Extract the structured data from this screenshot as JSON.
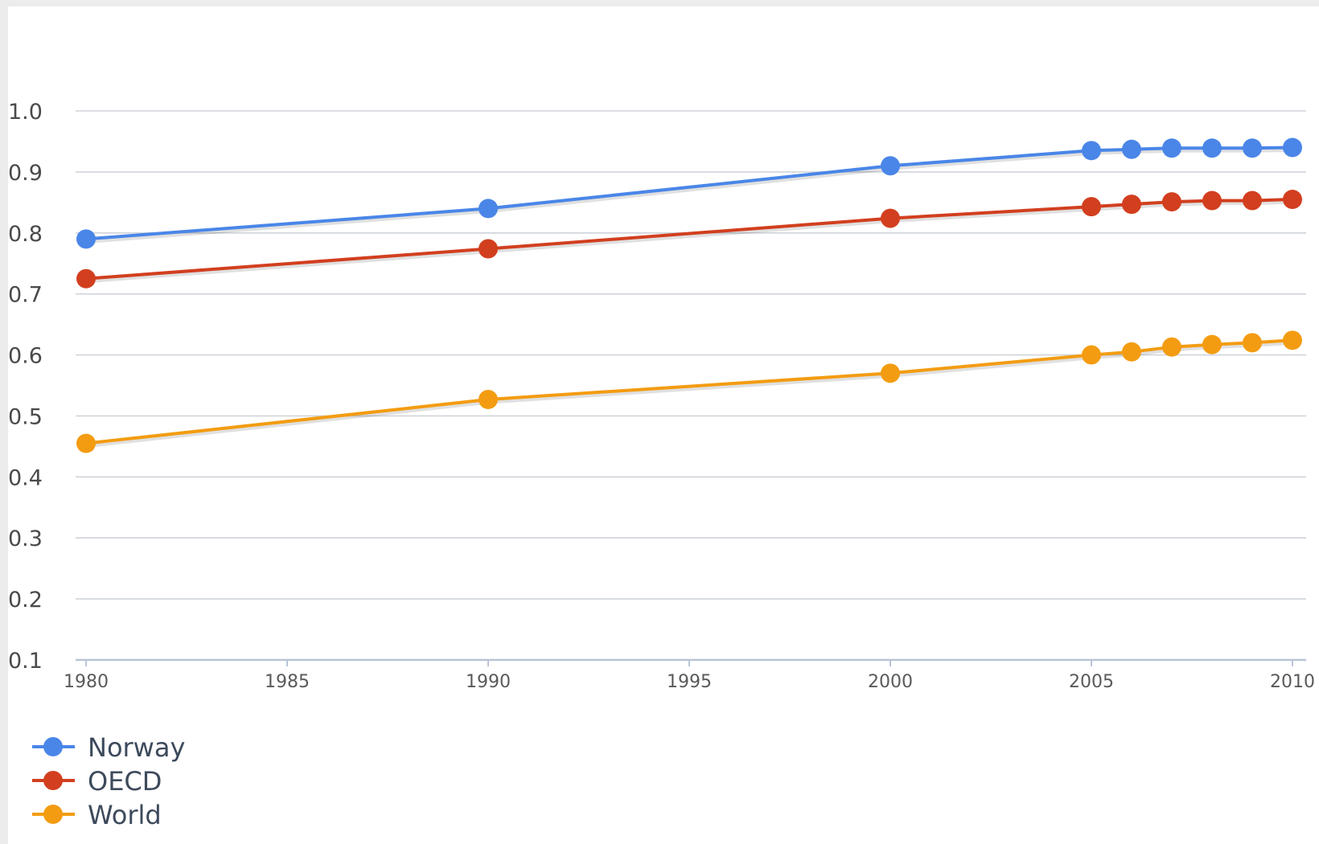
{
  "chart_data": {
    "type": "line",
    "title": "",
    "xlabel": "",
    "ylabel": "",
    "x_ticks": [
      "1980",
      "1985",
      "1990",
      "1995",
      "2000",
      "2005",
      "2010"
    ],
    "y_ticks": [
      "0.1",
      "0.2",
      "0.3",
      "0.4",
      "0.5",
      "0.6",
      "0.7",
      "0.8",
      "0.9",
      "1.0"
    ],
    "xlim": [
      1980,
      2010
    ],
    "ylim": [
      0.1,
      1.0
    ],
    "grid": "horizontal",
    "legend_position": "bottom-left",
    "x": [
      1980,
      1990,
      2000,
      2005,
      2006,
      2007,
      2008,
      2009,
      2010
    ],
    "series": [
      {
        "name": "Norway",
        "color": "#4a86e8",
        "values": [
          0.79,
          0.84,
          0.91,
          0.935,
          0.937,
          0.939,
          0.939,
          0.939,
          0.94
        ]
      },
      {
        "name": "OECD",
        "color": "#d23f1f",
        "values": [
          0.725,
          0.774,
          0.824,
          0.843,
          0.847,
          0.851,
          0.853,
          0.853,
          0.855
        ]
      },
      {
        "name": "World",
        "color": "#f39c12",
        "values": [
          0.455,
          0.527,
          0.57,
          0.6,
          0.605,
          0.613,
          0.617,
          0.62,
          0.624
        ]
      }
    ]
  }
}
